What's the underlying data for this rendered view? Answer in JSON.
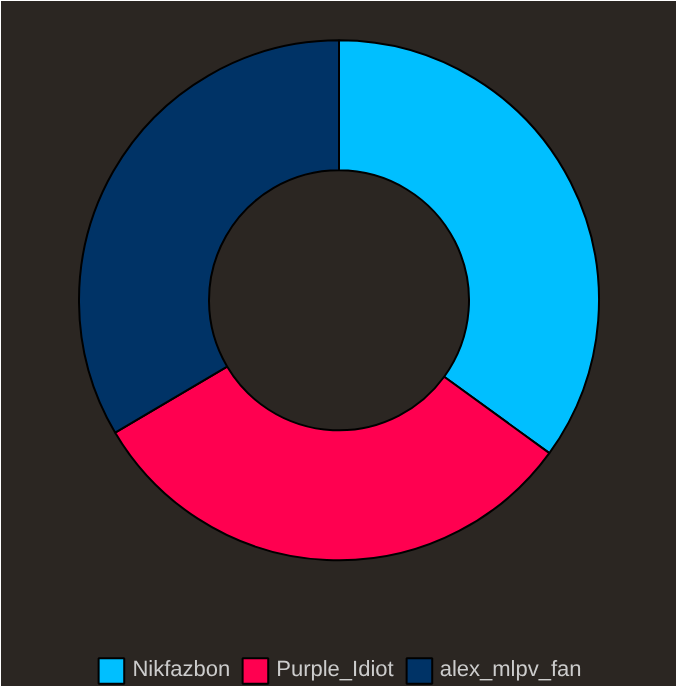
{
  "chart_data": {
    "type": "donut",
    "categories": [
      "Nikfazbon",
      "Purple_Idiot",
      "alex_mlpv_fan"
    ],
    "values": [
      35,
      31.5,
      33.5
    ],
    "colors": [
      "#00bfff",
      "#ff0050",
      "#003366"
    ],
    "legend": "bottom"
  }
}
